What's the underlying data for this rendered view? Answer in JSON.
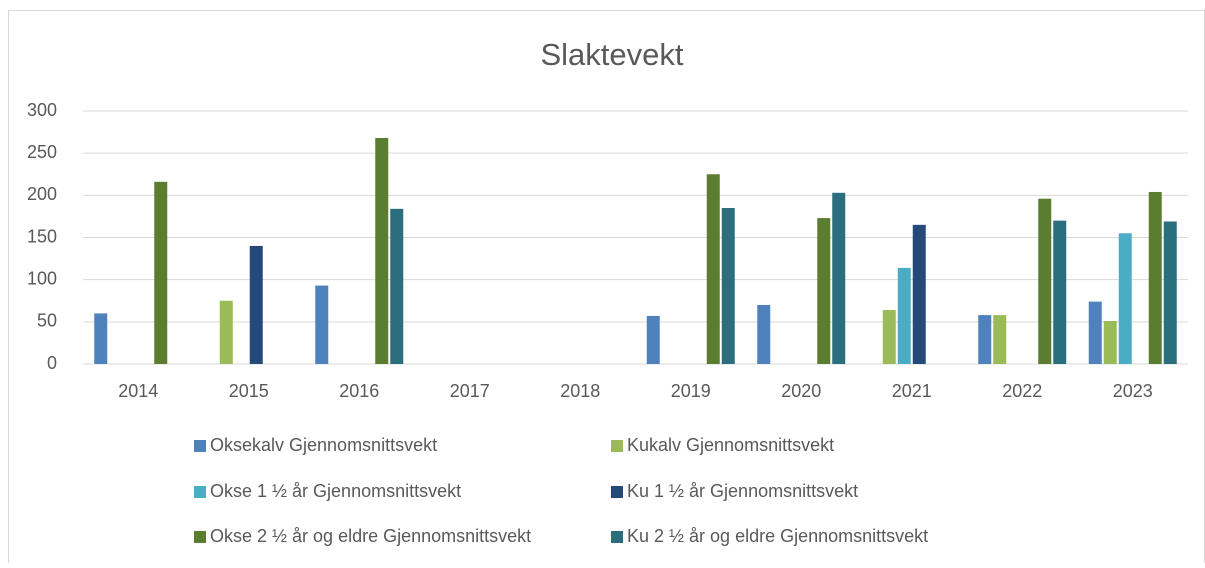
{
  "chart_data": {
    "type": "bar",
    "title": "Slaktevekt",
    "categories": [
      "2014",
      "2015",
      "2016",
      "2017",
      "2018",
      "2019",
      "2020",
      "2021",
      "2022",
      "2023"
    ],
    "series": [
      {
        "name": "Oksekalv Gjennomsnittsvekt",
        "color": "#4f81bd",
        "values": [
          60,
          null,
          93,
          null,
          null,
          57,
          70,
          null,
          58,
          74
        ]
      },
      {
        "name": "Kukalv Gjennomsnittsvekt",
        "color": "#9bbb59",
        "values": [
          null,
          75,
          null,
          null,
          null,
          null,
          null,
          64,
          58,
          51
        ]
      },
      {
        "name": "Okse 1 ½ år Gjennomsnittsvekt",
        "color": "#4bacc6",
        "values": [
          null,
          null,
          null,
          null,
          null,
          null,
          null,
          114,
          null,
          155
        ]
      },
      {
        "name": "Ku 1 ½ år Gjennomsnittsvekt",
        "color": "#254a7a",
        "values": [
          null,
          140,
          null,
          null,
          null,
          null,
          null,
          165,
          null,
          null
        ]
      },
      {
        "name": "Okse 2 ½ år og eldre Gjennomsnittsvekt",
        "color": "#5b7d2f",
        "values": [
          216,
          null,
          268,
          null,
          null,
          225,
          173,
          null,
          196,
          204
        ]
      },
      {
        "name": "Ku 2 ½ år og eldre Gjennomsnittsvekt",
        "color": "#2b6e7e",
        "values": [
          null,
          null,
          184,
          null,
          null,
          185,
          203,
          null,
          170,
          169
        ]
      }
    ],
    "ylim": [
      0,
      300
    ],
    "yticks": [
      0,
      50,
      100,
      150,
      200,
      250,
      300
    ],
    "grid": true,
    "legend": "bottom"
  }
}
